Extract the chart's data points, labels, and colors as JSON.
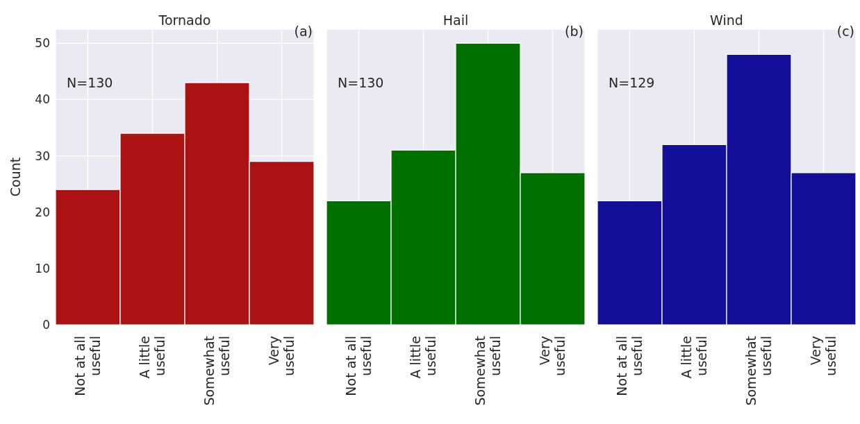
{
  "chart_data": [
    {
      "type": "bar",
      "title": "Tornado",
      "ylabel": "Count",
      "categories": [
        "Not at all\nuseful",
        "A little\nuseful",
        "Somewhat\nuseful",
        "Very\nuseful"
      ],
      "values": [
        24,
        34,
        43,
        29
      ],
      "color": "#ab1313",
      "ylim": [
        0,
        52.5
      ],
      "yticks": [
        0,
        10,
        20,
        30,
        40,
        50
      ],
      "grid": true,
      "annotations": [
        "N=130",
        "(a)"
      ]
    },
    {
      "type": "bar",
      "title": "Hail",
      "categories": [
        "Not at all\nuseful",
        "A little\nuseful",
        "Somewhat\nuseful",
        "Very\nuseful"
      ],
      "values": [
        22,
        31,
        50,
        27
      ],
      "color": "#007000",
      "ylim": [
        0,
        52.5
      ],
      "yticks": [
        0,
        10,
        20,
        30,
        40,
        50
      ],
      "grid": true,
      "tick_labels": "x",
      "annotations": [
        "N=130",
        "(b)"
      ]
    },
    {
      "type": "bar",
      "title": "Wind",
      "categories": [
        "Not at all\nuseful",
        "A little\nuseful",
        "Somewhat\nuseful",
        "Very\nuseful"
      ],
      "values": [
        22,
        32,
        48,
        27
      ],
      "color": "#130f99",
      "ylim": [
        0,
        52.5
      ],
      "yticks": [
        0,
        10,
        20,
        30,
        40,
        50
      ],
      "grid": true,
      "tick_labels": "x",
      "annotations": [
        "N=129",
        "(c)"
      ]
    }
  ]
}
